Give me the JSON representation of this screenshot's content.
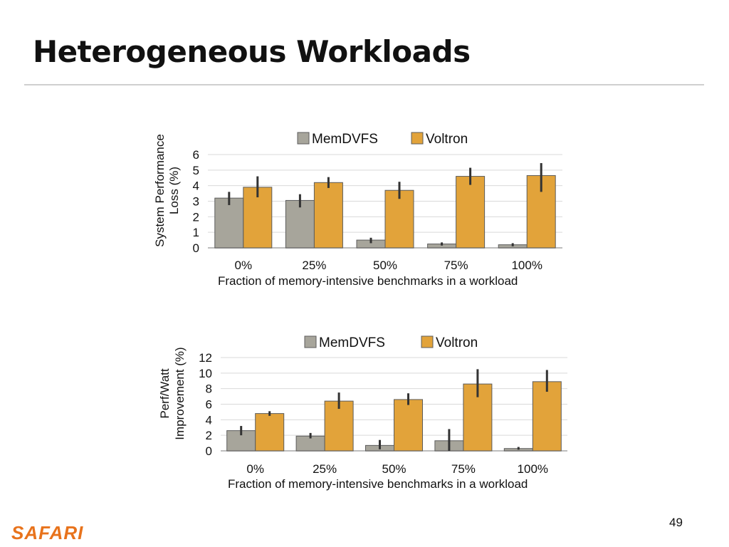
{
  "slide": {
    "title": "Heterogeneous Workloads",
    "page_number": "49",
    "logo_text": "SAFARI"
  },
  "colors": {
    "memdvfs": "#a7a59b",
    "voltron": "#e2a33a",
    "bar_stroke": "#5c5c5c",
    "grid": "#d9d9d9",
    "error_bar": "#333333",
    "logo": "#e8731c"
  },
  "chart_data": [
    {
      "type": "bar",
      "categories": [
        "0%",
        "25%",
        "50%",
        "75%",
        "100%"
      ],
      "xlabel": "Fraction of memory-intensive benchmarks in a workload",
      "ylabel": [
        "System Performance",
        "Loss (%)"
      ],
      "ylim": [
        0,
        6
      ],
      "yticks": [
        0,
        1,
        2,
        3,
        4,
        5,
        6
      ],
      "grid": true,
      "legend": "top",
      "series": [
        {
          "name": "MemDVFS",
          "values": [
            3.2,
            3.05,
            0.5,
            0.25,
            0.2
          ],
          "err_low": [
            2.75,
            2.6,
            0.3,
            0.15,
            0.1
          ],
          "err_high": [
            3.6,
            3.45,
            0.65,
            0.35,
            0.3
          ]
        },
        {
          "name": "Voltron",
          "values": [
            3.9,
            4.2,
            3.7,
            4.6,
            4.65
          ],
          "err_low": [
            3.25,
            3.85,
            3.15,
            4.05,
            3.6
          ],
          "err_high": [
            4.6,
            4.55,
            4.25,
            5.15,
            5.45
          ]
        }
      ]
    },
    {
      "type": "bar",
      "categories": [
        "0%",
        "25%",
        "50%",
        "75%",
        "100%"
      ],
      "xlabel": "Fraction of memory-intensive benchmarks in a workload",
      "ylabel": [
        "Perf/Watt",
        "Improvement (%)"
      ],
      "ylim": [
        0,
        12
      ],
      "yticks": [
        0,
        2,
        4,
        6,
        8,
        10,
        12
      ],
      "grid": true,
      "legend": "top",
      "series": [
        {
          "name": "MemDVFS",
          "values": [
            2.6,
            1.9,
            0.7,
            1.3,
            0.3
          ],
          "err_low": [
            2.0,
            1.6,
            0.2,
            0.0,
            0.15
          ],
          "err_high": [
            3.2,
            2.3,
            1.4,
            2.8,
            0.5
          ]
        },
        {
          "name": "Voltron",
          "values": [
            4.8,
            6.4,
            6.6,
            8.6,
            8.9
          ],
          "err_low": [
            4.5,
            5.4,
            5.9,
            6.9,
            7.6
          ],
          "err_high": [
            5.1,
            7.5,
            7.4,
            10.5,
            10.4
          ]
        }
      ]
    }
  ]
}
